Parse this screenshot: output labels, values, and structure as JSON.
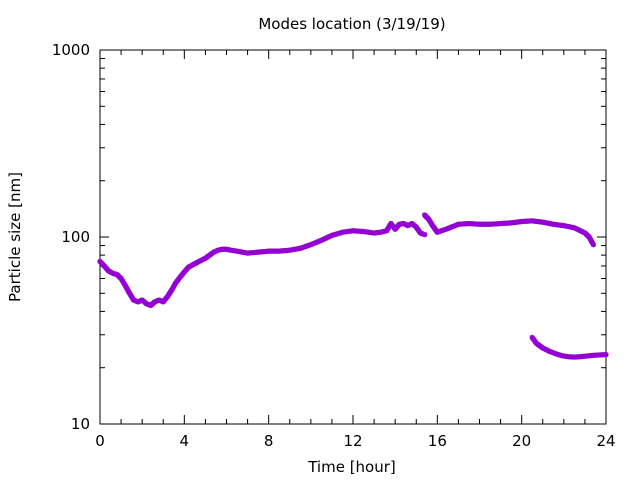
{
  "chart_data": {
    "type": "scatter",
    "title": "Modes location (3/19/19)",
    "xlabel": "Time [hour]",
    "ylabel": "Particle size [nm]",
    "xlim": [
      0,
      24
    ],
    "ylim": [
      10,
      1000
    ],
    "yscale": "log",
    "xticks": [
      0,
      4,
      8,
      12,
      16,
      20,
      24
    ],
    "yticks": [
      10,
      100,
      1000
    ],
    "grid": false,
    "legend": "none",
    "marker_color": "#9400d3",
    "series": [
      {
        "x": [
          0,
          0.2,
          0.4,
          0.6,
          0.8,
          1.0,
          1.2,
          1.4,
          1.6,
          1.8,
          2.0,
          2.2,
          2.4,
          2.6,
          2.8,
          3.0,
          3.2,
          3.4,
          3.6,
          3.8,
          4.0,
          4.2,
          4.4,
          4.6,
          4.8,
          5.0,
          5.2,
          5.4,
          5.6,
          5.8,
          6.0,
          6.2,
          6.5,
          7.0,
          7.5,
          8.0,
          8.5,
          9.0,
          9.5,
          10.0,
          10.5,
          11.0,
          11.5,
          12.0,
          12.5,
          13.0,
          13.3,
          13.6,
          13.8,
          14.0,
          14.2,
          14.4,
          14.6,
          14.8,
          15.0,
          15.2,
          15.4
        ],
        "y": [
          74,
          70,
          66,
          64,
          63,
          60,
          55,
          50,
          46,
          45,
          46,
          44,
          43,
          45,
          46,
          45,
          48,
          52,
          57,
          61,
          65,
          69,
          71,
          73,
          75,
          77,
          80,
          83,
          85,
          86,
          86,
          85,
          84,
          82,
          83,
          84,
          84,
          85,
          87,
          91,
          96,
          102,
          106,
          108,
          107,
          105,
          106,
          108,
          118,
          110,
          117,
          118,
          115,
          118,
          113,
          105,
          103
        ]
      },
      {
        "x": [
          15.4,
          15.6,
          15.8,
          16.0,
          16.2,
          16.5,
          17.0,
          17.5,
          18.0,
          18.5,
          19.0,
          19.5,
          20.0,
          20.5,
          21.0,
          21.5,
          22.0,
          22.5,
          23.0,
          23.2,
          23.4
        ],
        "y": [
          131,
          124,
          114,
          106,
          108,
          111,
          117,
          118,
          117,
          117,
          118,
          119,
          121,
          122,
          120,
          117,
          115,
          112,
          105,
          100,
          91
        ]
      },
      {
        "x": [
          20.5,
          20.7,
          21.0,
          21.3,
          21.6,
          21.9,
          22.2,
          22.5,
          22.8,
          23.1,
          23.4,
          23.7,
          24.0
        ],
        "y": [
          29,
          27,
          25.5,
          24.5,
          23.8,
          23.2,
          22.9,
          22.8,
          22.9,
          23.1,
          23.3,
          23.4,
          23.5
        ]
      }
    ]
  }
}
